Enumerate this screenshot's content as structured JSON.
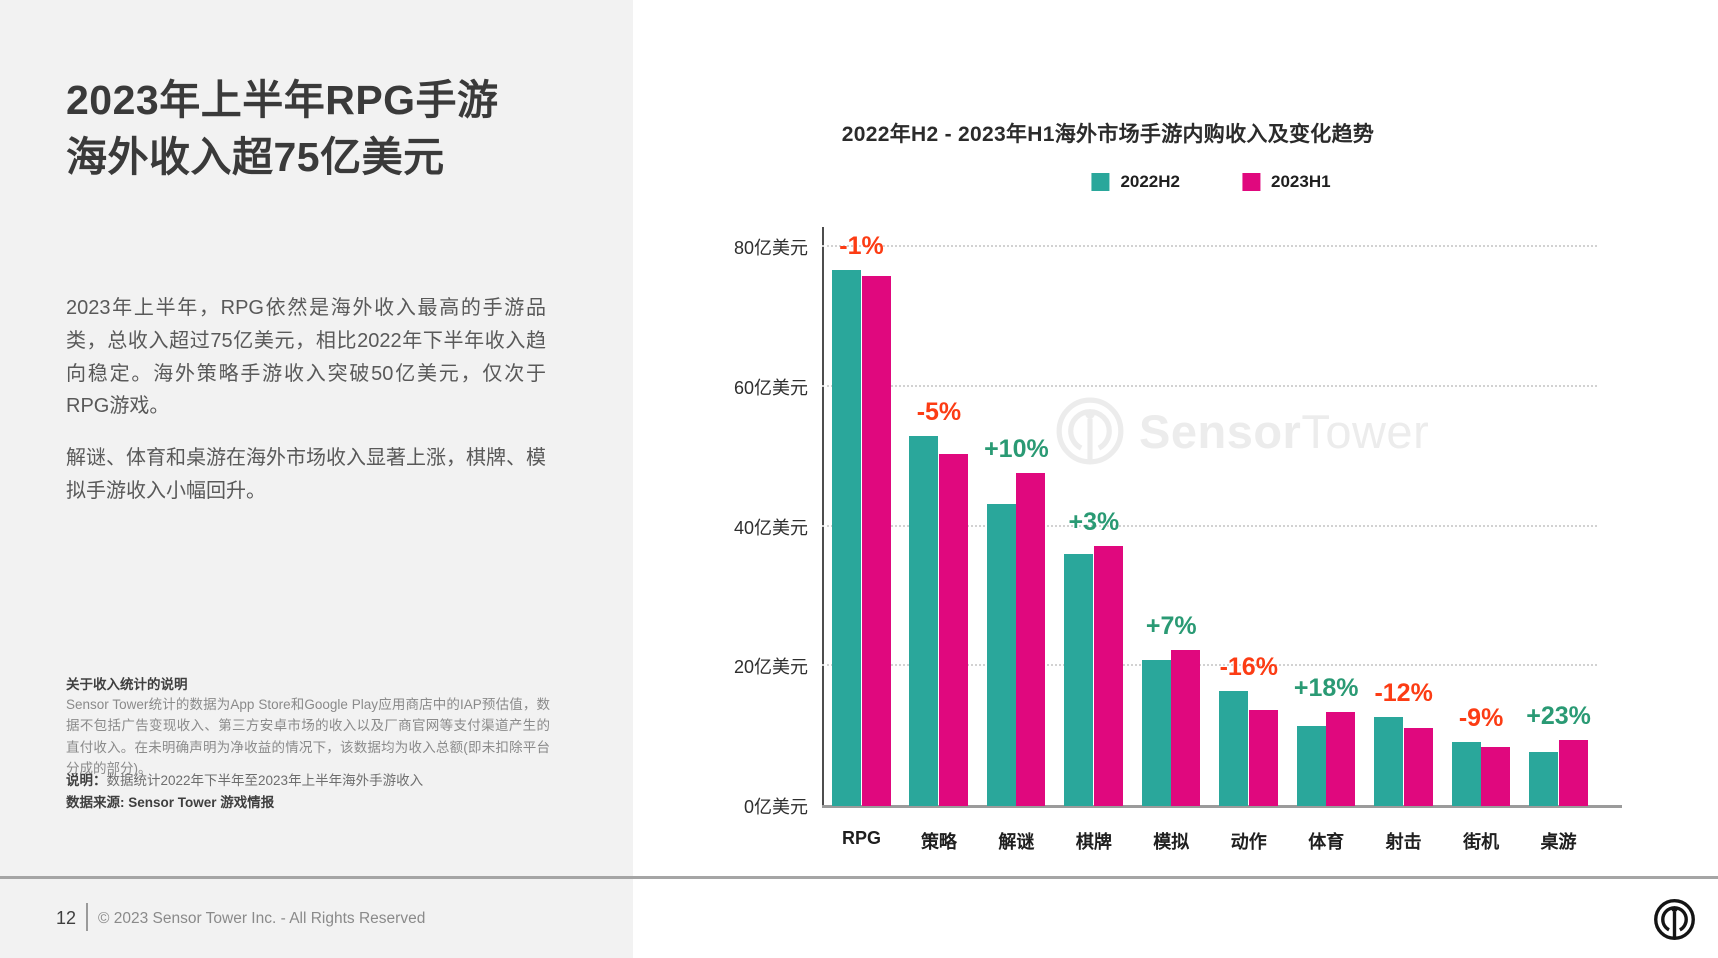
{
  "left_panel": {
    "title_line1": "2023年上半年RPG手游",
    "title_line2": "海外收入超75亿美元",
    "paragraph1": "2023年上半年，RPG依然是海外收入最高的手游品类，总收入超过75亿美元，相比2022年下半年收入趋向稳定。海外策略手游收入突破50亿美元，仅次于RPG游戏。",
    "paragraph2": "解谜、体育和桌游在海外市场收入显著上涨，棋牌、模拟手游收入小幅回升。",
    "note_heading": "关于收入统计的说明",
    "note_body": "Sensor Tower统计的数据为App Store和Google Play应用商店中的IAP预估值，数据不包括广告变现收入、第三方安卓市场的收入以及厂商官网等支付渠道产生的直付收入。在未明确声明为净收益的情况下，该数据均为收入总额(即未扣除平台分成的部分)。",
    "note2_label": "说明：",
    "note2_text": "数据统计2022年下半年至2023年上半年海外手游收入",
    "source_text": "数据来源: Sensor Tower 游戏情报"
  },
  "watermark": {
    "bold": "Sensor",
    "light": "Tower"
  },
  "footer": {
    "page_number": "12",
    "copyright": "© 2023 Sensor Tower Inc. - All Rights Reserved"
  },
  "chart_data": {
    "type": "bar",
    "title": "2022年H2 - 2023年H1海外市场手游内购收入及变化趋势",
    "categories": [
      "RPG",
      "策略",
      "解谜",
      "棋牌",
      "模拟",
      "动作",
      "体育",
      "射击",
      "街机",
      "桌游"
    ],
    "series": [
      {
        "name": "2022H2",
        "color": "#2aa79b",
        "values": [
          76.7,
          53.0,
          43.2,
          36.1,
          20.9,
          16.5,
          11.4,
          12.7,
          9.2,
          7.7
        ]
      },
      {
        "name": "2023H1",
        "color": "#e0087e",
        "values": [
          75.9,
          50.4,
          47.6,
          37.2,
          22.3,
          13.8,
          13.5,
          11.2,
          8.4,
          9.5
        ]
      }
    ],
    "change_labels": [
      "-1%",
      "-5%",
      "+10%",
      "+3%",
      "+7%",
      "-16%",
      "+18%",
      "-12%",
      "-9%",
      "+23%"
    ],
    "y_ticks": [
      0,
      20,
      40,
      60,
      80
    ],
    "y_tick_suffix": "亿美元",
    "ylim": [
      0,
      80
    ],
    "grid": "horizontal-dotted",
    "legend_position": "top",
    "positive_color": "#2a9a74",
    "negative_color": "#fc3c14"
  }
}
